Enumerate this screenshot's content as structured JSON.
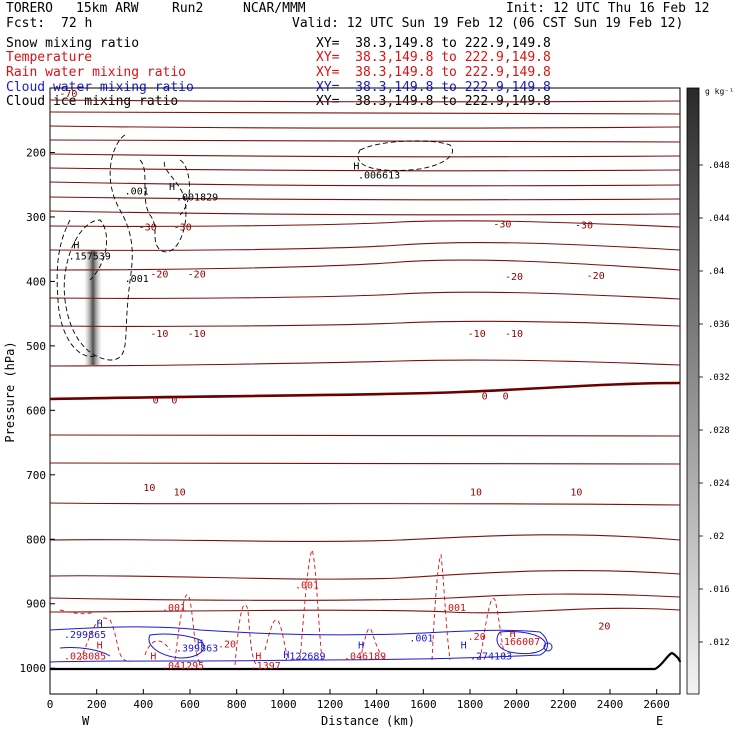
{
  "header": {
    "model": "TORERO",
    "resolution": "15km ARW",
    "run": "Run2",
    "org": "NCAR/MMM",
    "init": "Init: 12 UTC Thu 16 Feb 12",
    "fcst_label": "Fcst:",
    "fcst_value": "72 h",
    "valid": "Valid: 12 UTC Sun 19 Feb 12 (06 CST Sun 19 Feb 12)"
  },
  "legend": [
    {
      "label": "Snow mixing ratio",
      "color": "#000000",
      "xy": "XY=  38.3,149.8 to 222.9,149.8"
    },
    {
      "label": "Temperature",
      "color": "#d11111",
      "xy": "XY=  38.3,149.8 to 222.9,149.8"
    },
    {
      "label": "Rain water mixing ratio",
      "color": "#d11111",
      "xy": "XY=  38.3,149.8 to 222.9,149.8"
    },
    {
      "label": "Cloud water mixing ratio",
      "color": "#1a1ad0",
      "xy": "XY=  38.3,149.8 to 222.9,149.8"
    },
    {
      "label": "Cloud ice mixing ratio",
      "color": "#000000",
      "xy": "XY=  38.3,149.8 to 222.9,149.8"
    }
  ],
  "chart_data": {
    "type": "contour-cross-section",
    "xlabel": "Distance (km)",
    "ylabel": "Pressure (hPa)",
    "x_ticks": [
      0,
      200,
      400,
      600,
      800,
      1000,
      1200,
      1400,
      1600,
      1800,
      2000,
      2200,
      2400,
      2600
    ],
    "x_range": [
      0,
      2700
    ],
    "y_ticks": [
      200,
      300,
      400,
      500,
      600,
      700,
      800,
      900,
      1000
    ],
    "y_range": [
      100,
      1040
    ],
    "x_end_left": "W",
    "x_end_right": "E",
    "colorbar_unit": "g kg⁻¹",
    "colorbar_ticks": [
      ".012",
      ".016",
      ".02",
      ".024",
      ".028",
      ".032",
      ".036",
      ".04",
      ".044",
      ".048"
    ],
    "temperature_labels": [
      {
        "x": 40,
        "p": 108,
        "text": "-70"
      },
      {
        "x": 380,
        "p": 315,
        "text": "-30"
      },
      {
        "x": 530,
        "p": 315,
        "text": "-30"
      },
      {
        "x": 1900,
        "p": 310,
        "text": "-30"
      },
      {
        "x": 2250,
        "p": 312,
        "text": "-30"
      },
      {
        "x": 430,
        "p": 388,
        "text": "-20"
      },
      {
        "x": 590,
        "p": 388,
        "text": "-20"
      },
      {
        "x": 1950,
        "p": 392,
        "text": "-20"
      },
      {
        "x": 2300,
        "p": 390,
        "text": "-20"
      },
      {
        "x": 430,
        "p": 480,
        "text": "-10"
      },
      {
        "x": 590,
        "p": 480,
        "text": "-10"
      },
      {
        "x": 1790,
        "p": 480,
        "text": "-10"
      },
      {
        "x": 1950,
        "p": 480,
        "text": "-10"
      },
      {
        "x": 440,
        "p": 583,
        "text": "0"
      },
      {
        "x": 520,
        "p": 583,
        "text": "0"
      },
      {
        "x": 1850,
        "p": 577,
        "text": "0"
      },
      {
        "x": 1940,
        "p": 577,
        "text": "0"
      },
      {
        "x": 400,
        "p": 719,
        "text": "10"
      },
      {
        "x": 530,
        "p": 726,
        "text": "10"
      },
      {
        "x": 1800,
        "p": 726,
        "text": "10"
      },
      {
        "x": 2230,
        "p": 726,
        "text": "10"
      },
      {
        "x": 2350,
        "p": 934,
        "text": "20"
      }
    ],
    "ice_annotations": [
      {
        "x": 320,
        "p": 259,
        "text": ".001"
      },
      {
        "x": 540,
        "p": 268,
        "text": ".001829"
      },
      {
        "x": 1320,
        "p": 234,
        "text": ".006613"
      },
      {
        "x": 80,
        "p": 360,
        "text": ".157539"
      },
      {
        "x": 320,
        "p": 395,
        "text": ".001"
      }
    ],
    "rain_annotations": [
      {
        "x": 1050,
        "p": 870,
        "text": ".001"
      },
      {
        "x": 480,
        "p": 905,
        "text": ".001"
      },
      {
        "x": 1680,
        "p": 905,
        "text": ".001"
      },
      {
        "x": 60,
        "p": 980,
        "text": ".028085"
      },
      {
        "x": 480,
        "p": 995,
        "text": ".041295"
      },
      {
        "x": 860,
        "p": 995,
        "text": ".1397"
      },
      {
        "x": 1260,
        "p": 980,
        "text": ".046189"
      },
      {
        "x": 1920,
        "p": 958,
        "text": ".166007"
      },
      {
        "x": 720,
        "p": 962,
        "text": ".20"
      },
      {
        "x": 1790,
        "p": 950,
        "text": ".20"
      }
    ],
    "cloud_annotations": [
      {
        "x": 60,
        "p": 947,
        "text": ".299865"
      },
      {
        "x": 540,
        "p": 968,
        "text": ".399863"
      },
      {
        "x": 1000,
        "p": 980,
        "text": ".122689"
      },
      {
        "x": 1540,
        "p": 952,
        "text": ".001"
      },
      {
        "x": 1800,
        "p": 980,
        "text": ".274103"
      }
    ],
    "highs": [
      {
        "x": 100,
        "p": 343,
        "color": "#000000"
      },
      {
        "x": 510,
        "p": 252,
        "color": "#000000"
      },
      {
        "x": 1300,
        "p": 220,
        "color": "#000000"
      },
      {
        "x": 200,
        "p": 930,
        "color": "#1a1ad0"
      },
      {
        "x": 200,
        "p": 963,
        "color": "#d11111"
      },
      {
        "x": 430,
        "p": 980,
        "color": "#d11111"
      },
      {
        "x": 630,
        "p": 960,
        "color": "#1a1ad0"
      },
      {
        "x": 880,
        "p": 980,
        "color": "#d11111"
      },
      {
        "x": 1000,
        "p": 978,
        "color": "#1a1ad0"
      },
      {
        "x": 1320,
        "p": 963,
        "color": "#1a1ad0"
      },
      {
        "x": 1760,
        "p": 963,
        "color": "#1a1ad0"
      },
      {
        "x": 1970,
        "p": 945,
        "color": "#d11111"
      }
    ]
  }
}
